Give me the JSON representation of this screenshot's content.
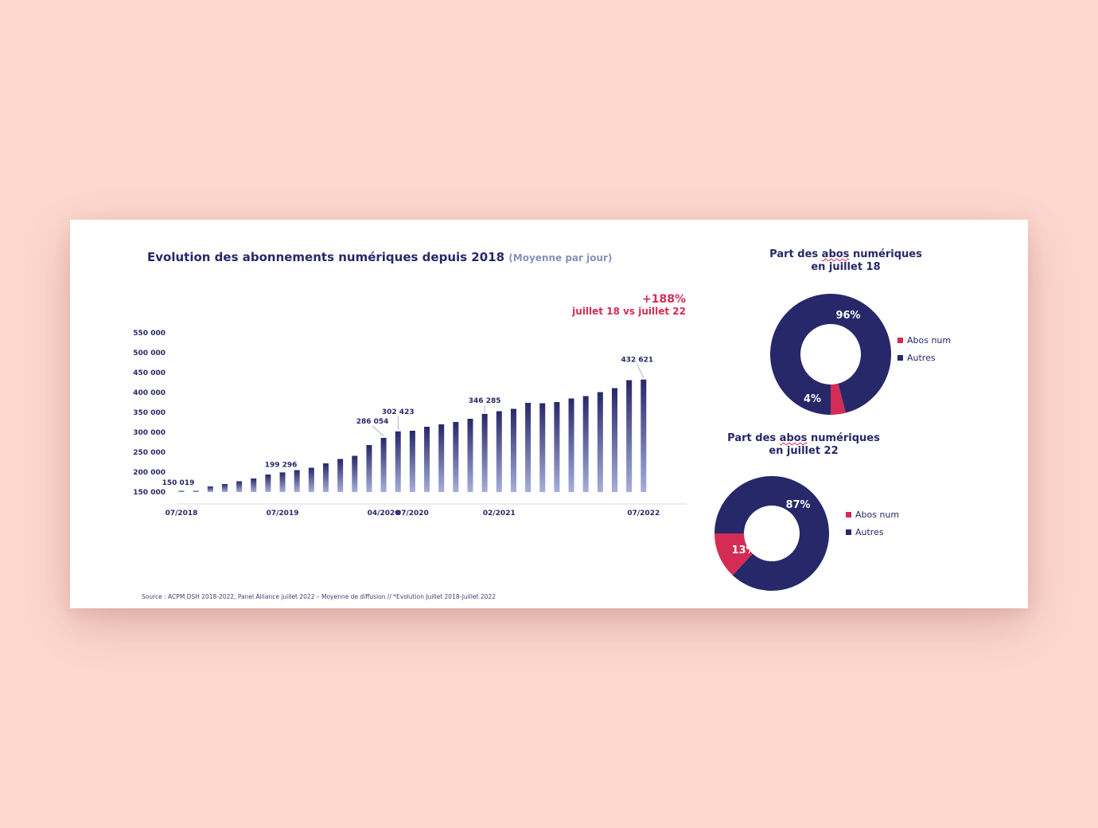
{
  "colors": {
    "navy": "#27286a",
    "accent": "#d42c55",
    "bar_light": "#a6aedb",
    "background": "#fdd8cf"
  },
  "title": "Evolution des abonnements numériques depuis 2018",
  "subtitle": "(Moyenne par jour)",
  "highlight": {
    "pct": "+188%",
    "text": "juillet 18 vs juillet 22"
  },
  "source": "Source : ACPM DSH 2018-2022, Panel Alliance juillet 2022 – Moyenne de diffusion // *Evolution Juillet 2018-Juillet 2022",
  "chart_data": [
    {
      "type": "bar",
      "title": "Evolution des abonnements numériques depuis 2018",
      "subtitle": "(Moyenne par jour)",
      "ylim": [
        150000,
        550000
      ],
      "y_ticks": [
        "150 000",
        "200 000",
        "250 000",
        "300 000",
        "350 000",
        "400 000",
        "450 000",
        "500 000",
        "550 000"
      ],
      "y_tick_values": [
        150000,
        200000,
        250000,
        300000,
        350000,
        400000,
        450000,
        500000,
        550000
      ],
      "x_tick_labels": [
        {
          "index": 0,
          "label": "07/2018"
        },
        {
          "index": 7,
          "label": "07/2019"
        },
        {
          "index": 14,
          "label": "04/2020"
        },
        {
          "index": 16,
          "label": "07/2020"
        },
        {
          "index": 22,
          "label": "02/2021"
        },
        {
          "index": 32,
          "label": "07/2022"
        }
      ],
      "values": [
        150019,
        150019,
        164000,
        170000,
        177000,
        184000,
        194000,
        199296,
        205000,
        211000,
        222000,
        233000,
        241000,
        268000,
        286054,
        302423,
        304000,
        314000,
        320000,
        326000,
        334000,
        346285,
        353000,
        359000,
        374000,
        373000,
        376000,
        385000,
        391000,
        401000,
        411000,
        431000,
        432621
      ],
      "data_labels": [
        {
          "index": 0,
          "label": "150 019"
        },
        {
          "index": 7,
          "label": "199 296"
        },
        {
          "index": 14,
          "label": "286 054"
        },
        {
          "index": 15,
          "label": "302 423"
        },
        {
          "index": 21,
          "label": "346 285"
        },
        {
          "index": 32,
          "label": "432 621"
        }
      ],
      "grid": false
    },
    {
      "type": "pie",
      "title": "Part des abos numériques en juillet 18",
      "title_parts": [
        "Part des ",
        "abos",
        " numériques",
        "en juillet 18"
      ],
      "slices": [
        {
          "name": "Abos num",
          "value": 4,
          "label": "4%",
          "color": "#d42c55"
        },
        {
          "name": "Autres",
          "value": 96,
          "label": "96%",
          "color": "#27286a"
        }
      ]
    },
    {
      "type": "pie",
      "title": "Part des abos numériques en juillet 22",
      "title_parts": [
        "Part des ",
        "abos",
        " numériques",
        "en juillet 22"
      ],
      "slices": [
        {
          "name": "Abos num",
          "value": 13,
          "label": "13%",
          "color": "#d42c55"
        },
        {
          "name": "Autres",
          "value": 87,
          "label": "87%",
          "color": "#27286a"
        }
      ]
    }
  ]
}
